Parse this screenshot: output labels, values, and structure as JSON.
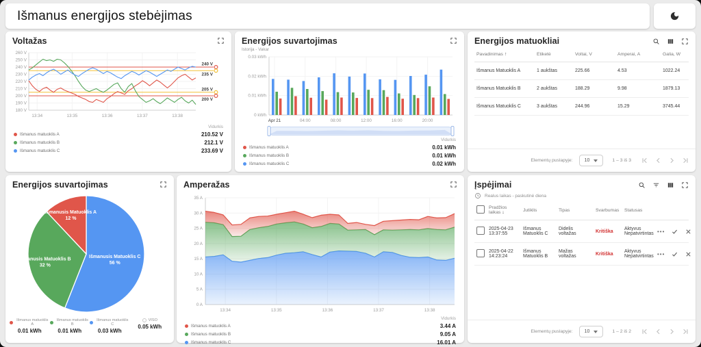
{
  "header": {
    "title": "Išmanus energijos stebėjimas"
  },
  "colors": {
    "A": "#e0564a",
    "B": "#58a85c",
    "C": "#5596f2",
    "warnLine": "#f2c037",
    "total": "#c9c9c9",
    "severity": "#d12f2f"
  },
  "panels": {
    "voltage": {
      "title": "Voltažas",
      "legend_header": "Vidurkis",
      "legend": [
        {
          "color": "A",
          "label": "Išmanus matuoklis A",
          "value": "210.52 V"
        },
        {
          "color": "B",
          "label": "Išmanus matuoklis B",
          "value": "212.1 V"
        },
        {
          "color": "C",
          "label": "Išmanus matuoklis C",
          "value": "233.69 V"
        }
      ],
      "chart_data": {
        "type": "line",
        "ylabel": "V",
        "ylim": [
          180,
          260
        ],
        "ytick_step": 10,
        "x_ticks": [
          "13:34",
          "13:35",
          "13:36",
          "13:37",
          "13:38"
        ],
        "x_tick_pos": [
          0.05,
          0.26,
          0.47,
          0.68,
          0.89
        ],
        "thresholds": [
          {
            "value": 240,
            "label": "240 V",
            "color": "A"
          },
          {
            "value": 235,
            "label": "235 V",
            "color": "warnLine"
          },
          {
            "value": 205,
            "label": "205 V",
            "color": "warnLine"
          },
          {
            "value": 200,
            "label": "200 V",
            "color": "A"
          }
        ],
        "series": [
          {
            "name": "Išmanus matuoklis A",
            "color": "A",
            "values": [
              221,
              214,
              209,
              206,
              210,
              212,
              208,
              205,
              209,
              211,
              208,
              206,
              204,
              202,
              199,
              197,
              195,
              192,
              191,
              195,
              193,
              191,
              196,
              199,
              203,
              206,
              204,
              202,
              207,
              210,
              214,
              217,
              221,
              218,
              214,
              218,
              222,
              219,
              215,
              211,
              215,
              220,
              225,
              228,
              230,
              226,
              222,
              225
            ]
          },
          {
            "name": "Išmanus matuoklis B",
            "color": "B",
            "values": [
              236,
              239,
              243,
              247,
              251,
              249,
              250,
              248,
              251,
              250,
              246,
              241,
              235,
              228,
              220,
              213,
              208,
              206,
              208,
              210,
              207,
              205,
              208,
              212,
              216,
              218,
              210,
              205,
              213,
              217,
              207,
              199,
              195,
              191,
              193,
              196,
              192,
              189,
              193,
              197,
              194,
              191,
              195,
              198,
              193,
              190,
              194,
              188
            ]
          },
          {
            "name": "Išmanus matuoklis C",
            "color": "C",
            "values": [
              222,
              226,
              229,
              231,
              228,
              232,
              235,
              237,
              234,
              230,
              233,
              236,
              232,
              229,
              227,
              231,
              234,
              237,
              239,
              237,
              234,
              231,
              234,
              232,
              229,
              226,
              224,
              228,
              231,
              234,
              232,
              229,
              232,
              235,
              233,
              230,
              227,
              230,
              233,
              236,
              234,
              237,
              240,
              238,
              236,
              239,
              241,
              240
            ]
          }
        ]
      }
    },
    "bars": {
      "title": "Energijos suvartojimas",
      "subtitle": "Istorija - Vakar",
      "legend_header": "Vidurkis",
      "legend": [
        {
          "color": "A",
          "label": "Išmanus matuoklis A",
          "value": "0.01 kWh"
        },
        {
          "color": "B",
          "label": "Išmanus matuoklis B",
          "value": "0.01 kWh"
        },
        {
          "color": "C",
          "label": "Išmanus matuoklis C",
          "value": "0.02 kWh"
        }
      ],
      "chart_data": {
        "type": "bar",
        "ylim": [
          0,
          0.03
        ],
        "y_ticks": [
          "0 kWh",
          "0.01 kWh",
          "0.02 kWh",
          "0.03 kWh"
        ],
        "x_ticks": [
          "Apr 21",
          "04:00",
          "08:00",
          "12:00",
          "16:00",
          "20:00"
        ],
        "x_tick_pos": [
          0.03,
          0.197,
          0.364,
          0.53,
          0.697,
          0.864
        ],
        "series": [
          {
            "name": "Išmanus matuoklis C",
            "color": "C",
            "values": [
              0.0186,
              0.0182,
              0.0175,
              0.0194,
              0.0215,
              0.0198,
              0.0214,
              0.0184,
              0.0181,
              0.0201,
              0.0208,
              0.0234
            ]
          },
          {
            "name": "Išmanus matuoklis B",
            "color": "B",
            "values": [
              0.012,
              0.014,
              0.0134,
              0.0123,
              0.0118,
              0.0116,
              0.013,
              0.0128,
              0.0111,
              0.0103,
              0.0148,
              0.0108
            ]
          },
          {
            "name": "Išmanus matuoklis A",
            "color": "A",
            "values": [
              0.0085,
              0.0097,
              0.0089,
              0.0079,
              0.009,
              0.0088,
              0.0087,
              0.0093,
              0.0084,
              0.0087,
              0.009,
              0.0083
            ]
          }
        ]
      }
    },
    "meters": {
      "title": "Energijos matuokliai",
      "columns": [
        "Pavadinimas",
        "Etiketė",
        "Voltai, V",
        "Amperai, A",
        "Galia, W"
      ],
      "sort_glyph": "↑",
      "rows": [
        [
          "Išmanus Matuoklis A",
          "1 aukštas",
          "225.66",
          "4.53",
          "1022.24"
        ],
        [
          "Išmanus Matuoklis B",
          "2 aukštas",
          "188.29",
          "9.98",
          "1879.13"
        ],
        [
          "Išmanus Matuoklis C",
          "3 aukštas",
          "244.96",
          "15.29",
          "3745.44"
        ]
      ],
      "pagination": {
        "label": "Elementų puslapyje:",
        "page_size": "10",
        "range": "1 – 3 iš 3"
      }
    },
    "pie": {
      "title": "Energijos suvartojimas",
      "chart_data": {
        "type": "pie",
        "slices": [
          {
            "label": "Išmanusis Matuoklis C",
            "pct": 56,
            "pct_label": "56 %",
            "color": "C"
          },
          {
            "label": "Išmanusis Matuoklis B",
            "pct": 32,
            "pct_label": "32 %",
            "color": "B"
          },
          {
            "label": "Išmanusis Matuoklis A",
            "pct": 12,
            "pct_label": "12 %",
            "color": "A"
          }
        ]
      },
      "legend": [
        {
          "color": "A",
          "label": "Išmanus matuoklis A",
          "value": "0.01 kWh"
        },
        {
          "color": "B",
          "label": "Išmanus matuoklis B",
          "value": "0.01 kWh"
        },
        {
          "color": "C",
          "label": "Išmanus matuoklis C",
          "value": "0.03 kWh"
        },
        {
          "color": "total",
          "label": "VISO",
          "value": "0.05 kWh"
        }
      ]
    },
    "amperage": {
      "title": "Amperažas",
      "legend_header": "Vidurkis",
      "legend": [
        {
          "color": "A",
          "label": "Išmanus matuoklis A",
          "value": "3.44 A"
        },
        {
          "color": "B",
          "label": "Išmanus matuoklis B",
          "value": "9.05 A"
        },
        {
          "color": "C",
          "label": "Išmanus matuoklis C",
          "value": "16.01 A"
        }
      ],
      "chart_data": {
        "type": "area",
        "stacked": true,
        "values_are": "stacked_cumulative_tops_bottom_to_top",
        "ylim": [
          0,
          35
        ],
        "ytick_step": 5,
        "unit": "A",
        "x_ticks": [
          "13:34",
          "13:35",
          "13:36",
          "13:37",
          "13:38"
        ],
        "x_tick_pos": [
          0.08,
          0.285,
          0.49,
          0.695,
          0.9
        ],
        "series": [
          {
            "name": "Išmanus matuoklis C",
            "color": "C",
            "values": [
              15.6,
              15.8,
              16.3,
              14.2,
              13.9,
              14.5,
              15.1,
              15.4,
              16.2,
              16.8,
              17.0,
              17.3,
              16.4,
              15.6,
              17.2,
              17.6,
              17.5,
              17.4,
              16.8,
              15.6,
              17.3,
              17.1,
              16.1,
              15.5,
              15.4,
              15.6,
              14.6,
              14.5,
              15.2
            ]
          },
          {
            "name": "Išmanus matuoklis B",
            "color": "B",
            "values": [
              27.0,
              26.8,
              26.2,
              22.3,
              22.4,
              24.6,
              25.2,
              25.6,
              26.4,
              26.8,
              27.1,
              26.4,
              25.2,
              25.6,
              26.6,
              26.4,
              24.4,
              24.5,
              24.6,
              22.9,
              24.5,
              24.4,
              24.5,
              24.6,
              24.5,
              24.9,
              24.6,
              24.5,
              25.4
            ]
          },
          {
            "name": "Išmanus matuoklis A",
            "color": "A",
            "values": [
              30.6,
              30.2,
              29.4,
              26.1,
              26.3,
              28.4,
              28.9,
              29.0,
              29.6,
              30.1,
              30.6,
              29.6,
              28.5,
              29.3,
              29.6,
              29.4,
              26.6,
              26.9,
              26.3,
              25.9,
              27.3,
              27.5,
              27.7,
              27.9,
              27.8,
              28.9,
              28.4,
              28.5,
              29.8
            ]
          }
        ]
      }
    },
    "alarms": {
      "title": "Įspėjimai",
      "subtitle": "Realus laikas - paskutinė diena",
      "columns": [
        "Pradžios laikas",
        "Jutiklis",
        "Tipas",
        "Svarbumas",
        "Statusas"
      ],
      "sort_glyph": "↓",
      "rows": [
        {
          "date": "2025-04-23",
          "time": "13:37:55",
          "sensor": "Išmanus Matuoklis C",
          "type": "Didelis voltažas",
          "severity": "Kritiška",
          "status1": "Aktyvus",
          "status2": "Nepatvirtintas"
        },
        {
          "date": "2025-04-22",
          "time": "14:23:24",
          "sensor": "Išmanus Matuoklis B",
          "type": "Mažas voltažas",
          "severity": "Kritiška",
          "status1": "Aktyvus",
          "status2": "Nepatvirtintas"
        }
      ],
      "pagination": {
        "label": "Elementų puslapyje:",
        "page_size": "10",
        "range": "1 – 2 iš 2"
      }
    }
  }
}
